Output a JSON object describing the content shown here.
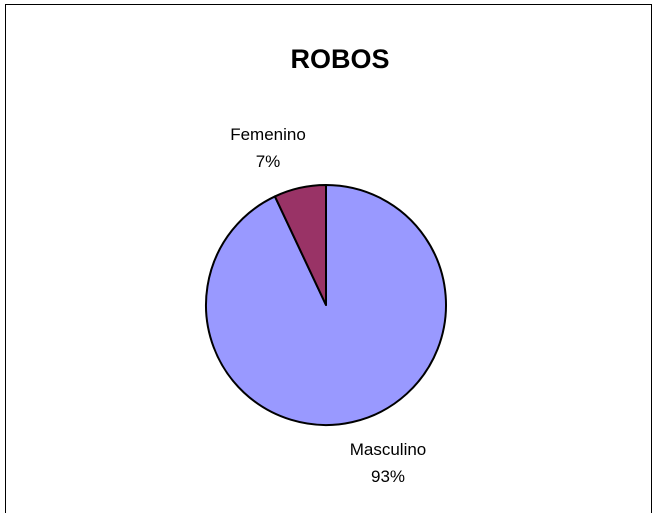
{
  "chart_data": {
    "type": "pie",
    "title": "ROBOS",
    "slices": [
      {
        "label": "Masculino",
        "percent_label": "93%",
        "value": 93,
        "color": "#9999ff"
      },
      {
        "label": "Femenino",
        "percent_label": "7%",
        "value": 7,
        "color": "#993366"
      }
    ],
    "start_angle": "12 o'clock",
    "direction": "clockwise",
    "slice_outline_color": "#000000",
    "legend": "none",
    "data_labels": "outside, category and percentage"
  }
}
